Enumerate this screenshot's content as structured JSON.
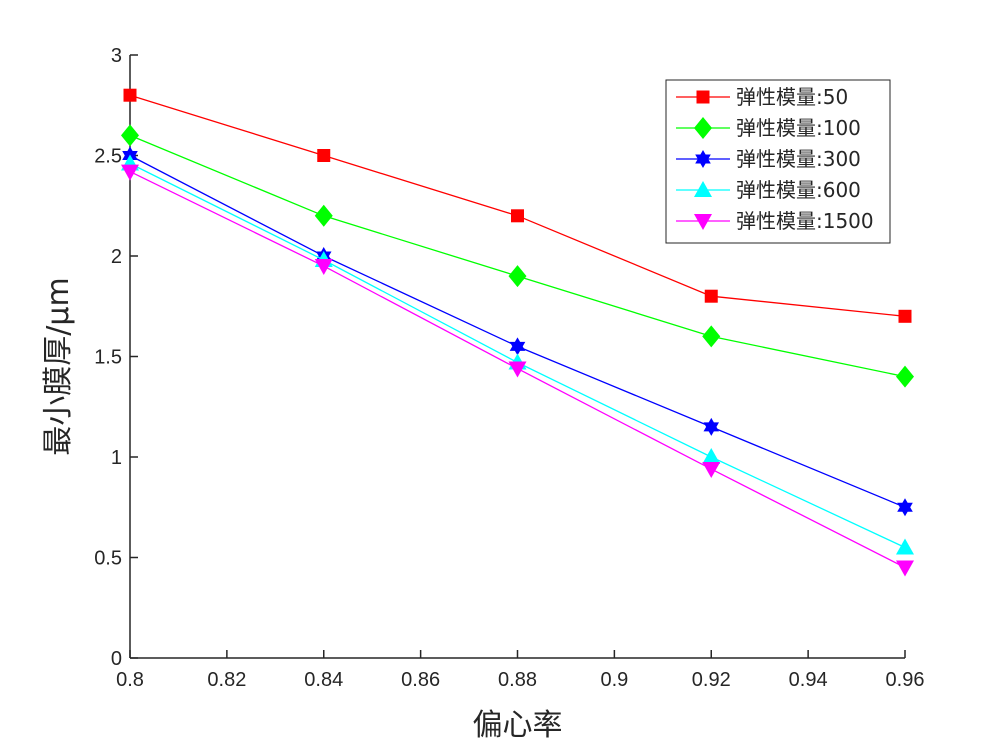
{
  "chart_data": {
    "type": "line",
    "title": "",
    "xlabel": "偏心率",
    "ylabel": "最小膜厚/μm",
    "xlim": [
      0.8,
      0.96
    ],
    "ylim": [
      0,
      3
    ],
    "grid": false,
    "legend_position": "top-right",
    "x": [
      0.8,
      0.84,
      0.88,
      0.92,
      0.96
    ],
    "x_ticks": [
      "0.8",
      "0.82",
      "0.84",
      "0.86",
      "0.88",
      "0.9",
      "0.92",
      "0.94",
      "0.96"
    ],
    "x_tick_values": [
      0.8,
      0.82,
      0.84,
      0.86,
      0.88,
      0.9,
      0.92,
      0.94,
      0.96
    ],
    "y_ticks": [
      "0",
      "0.5",
      "1",
      "1.5",
      "2",
      "2.5",
      "3"
    ],
    "y_tick_values": [
      0,
      0.5,
      1,
      1.5,
      2,
      2.5,
      3
    ],
    "series": [
      {
        "name": "弹性模量:50",
        "color": "#ff0000",
        "marker": "square",
        "values": [
          2.8,
          2.5,
          2.2,
          1.8,
          1.7
        ]
      },
      {
        "name": "弹性模量:100",
        "color": "#00ff00",
        "marker": "diamond",
        "values": [
          2.6,
          2.2,
          1.9,
          1.6,
          1.4
        ]
      },
      {
        "name": "弹性模量:300",
        "color": "#0000ff",
        "marker": "hexagram",
        "values": [
          2.5,
          2.0,
          1.55,
          1.15,
          0.75
        ]
      },
      {
        "name": "弹性模量:600",
        "color": "#00ffff",
        "marker": "triangle-up",
        "values": [
          2.46,
          1.98,
          1.47,
          1.0,
          0.55
        ]
      },
      {
        "name": "弹性模量:1500",
        "color": "#ff00ff",
        "marker": "triangle-down",
        "values": [
          2.42,
          1.95,
          1.44,
          0.94,
          0.45
        ]
      }
    ]
  }
}
